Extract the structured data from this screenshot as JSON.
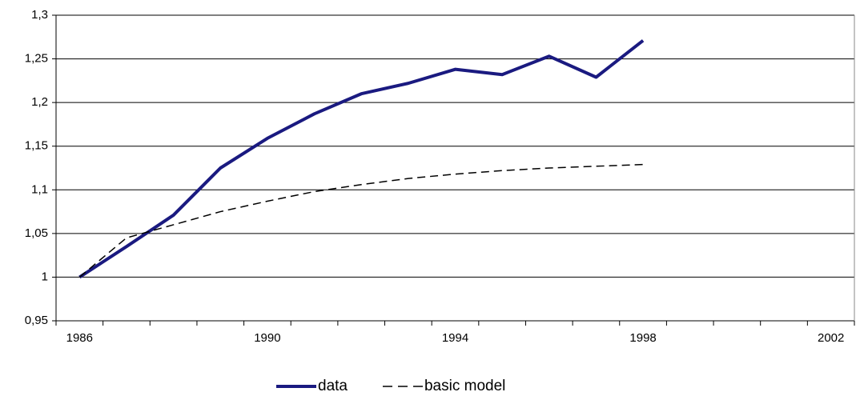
{
  "chart_data": {
    "type": "line",
    "x": [
      1986,
      1987,
      1988,
      1989,
      1990,
      1991,
      1992,
      1993,
      1994,
      1995,
      1996,
      1997,
      1998
    ],
    "series": [
      {
        "name": "data",
        "color": "#1a1a80",
        "dash": false,
        "values": [
          1.0,
          1.035,
          1.071,
          1.125,
          1.159,
          1.187,
          1.21,
          1.222,
          1.238,
          1.232,
          1.253,
          1.229,
          1.271
        ]
      },
      {
        "name": "basic model",
        "color": "#000000",
        "dash": true,
        "values": [
          1.0,
          1.045,
          1.06,
          1.075,
          1.087,
          1.098,
          1.106,
          1.113,
          1.118,
          1.122,
          1.125,
          1.127,
          1.129
        ]
      }
    ],
    "xlim": [
      1985.5,
      2002.5
    ],
    "xticks": [
      1986,
      1990,
      1994,
      1998,
      2002
    ],
    "ylim": [
      0.95,
      1.3
    ],
    "yticks": [
      {
        "value": 0.95,
        "label": "0,95"
      },
      1,
      {
        "value": 1.05,
        "label": "1,05"
      },
      {
        "value": 1.1,
        "label": "1,1"
      },
      {
        "value": 1.15,
        "label": "1,15"
      },
      {
        "value": 1.2,
        "label": "1,2"
      },
      {
        "value": 1.25,
        "label": "1,25"
      },
      {
        "value": 1.3,
        "label": "1,3"
      }
    ],
    "grid": true,
    "legend": "bottom"
  }
}
